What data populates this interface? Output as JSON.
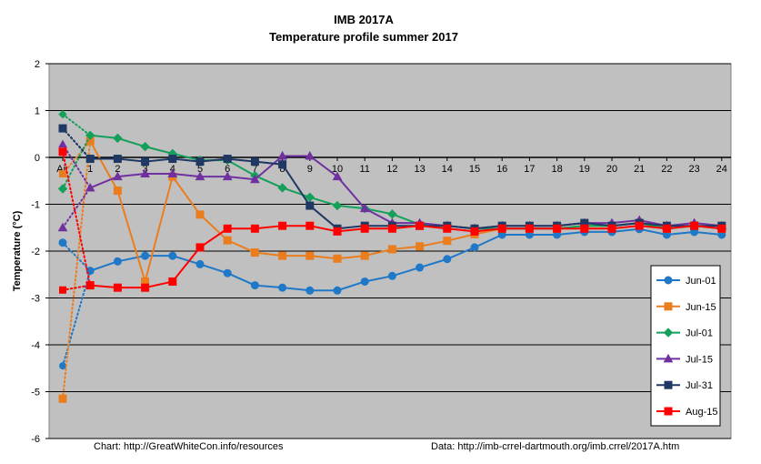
{
  "chart_data": {
    "type": "line",
    "title": "IMB 2017A",
    "subtitle": "Temperature profile summer 2017",
    "ylabel": "Temperature (°C)",
    "xlabel": "",
    "ylim": [
      -6,
      2
    ],
    "yticks": [
      2,
      1,
      0,
      -1,
      -2,
      -3,
      -4,
      -5,
      -6
    ],
    "categories": [
      "Air",
      "1",
      "2",
      "3",
      "4",
      "5",
      "6",
      "7",
      "8",
      "9",
      "10",
      "11",
      "12",
      "13",
      "14",
      "15",
      "16",
      "17",
      "18",
      "19",
      "20",
      "21",
      "22",
      "23",
      "24"
    ],
    "grid": "horizontal",
    "plot_background": "#c0c0c0",
    "legend_position": "right",
    "series": [
      {
        "name": "Jun-01",
        "color": "#1f78c8",
        "marker": "circle",
        "values": [
          -1.82,
          -2.42,
          -2.22,
          -2.1,
          -2.1,
          -2.28,
          -2.47,
          -2.73,
          -2.78,
          -2.84,
          -2.84,
          -2.65,
          -2.53,
          -2.35,
          -2.17,
          -1.92,
          -1.65,
          -1.65,
          -1.65,
          -1.59,
          -1.59,
          -1.53,
          -1.65,
          -1.59,
          -1.65
        ]
      },
      {
        "name": "Jun-15",
        "color": "#ea7d1e",
        "marker": "square",
        "values": [
          -5.15,
          0.35,
          -0.71,
          -2.65,
          -0.41,
          -1.22,
          -1.77,
          -2.03,
          -2.1,
          -2.1,
          -2.16,
          -2.1,
          -1.96,
          -1.9,
          -1.78,
          -1.64,
          -1.52,
          -1.52,
          -1.52,
          -1.46,
          -1.46,
          -1.4,
          -1.52,
          -1.46,
          -1.52
        ]
      },
      {
        "name": "Jul-01",
        "color": "#14a05a",
        "marker": "diamond",
        "values": [
          -0.67,
          0.47,
          0.41,
          0.23,
          0.08,
          -0.06,
          -0.06,
          -0.39,
          -0.65,
          -0.85,
          -1.03,
          -1.09,
          -1.21,
          -1.43,
          -1.46,
          -1.52,
          -1.52,
          -1.52,
          -1.52,
          -1.46,
          -1.46,
          -1.4,
          -1.52,
          -1.46,
          -1.52
        ]
      },
      {
        "name": "Jul-15",
        "color": "#7030a0",
        "marker": "triangle",
        "values": [
          -1.5,
          -0.65,
          -0.41,
          -0.35,
          -0.35,
          -0.41,
          -0.41,
          -0.47,
          0.03,
          0.03,
          -0.41,
          -1.09,
          -1.4,
          -1.4,
          -1.46,
          -1.52,
          -1.46,
          -1.46,
          -1.46,
          -1.4,
          -1.4,
          -1.34,
          -1.46,
          -1.4,
          -1.46
        ]
      },
      {
        "name": "Jul-31",
        "color": "#1f3864",
        "marker": "square",
        "values": [
          0.62,
          -0.03,
          -0.03,
          -0.09,
          -0.03,
          -0.09,
          -0.03,
          -0.09,
          -0.15,
          -1.03,
          -1.52,
          -1.46,
          -1.46,
          -1.46,
          -1.46,
          -1.52,
          -1.46,
          -1.46,
          -1.46,
          -1.4,
          -1.46,
          -1.4,
          -1.46,
          -1.46,
          -1.46
        ]
      },
      {
        "name": "Aug-15",
        "color": "#ff0000",
        "marker": "square",
        "values": [
          0.12,
          -2.73,
          -2.78,
          -2.78,
          -2.65,
          -1.92,
          -1.52,
          -1.52,
          -1.46,
          -1.46,
          -1.58,
          -1.52,
          -1.52,
          -1.46,
          -1.52,
          -1.58,
          -1.52,
          -1.52,
          -1.52,
          -1.52,
          -1.52,
          -1.46,
          -1.52,
          -1.46,
          -1.52
        ]
      }
    ],
    "air_to_1_secondary": {
      "Jun-01": -4.45,
      "Jun-15": -0.35,
      "Jul-01": 0.92,
      "Jul-15": 0.28,
      "Jul-31": 0.62,
      "Aug-15": -2.83
    }
  },
  "footer": {
    "chart_credit": "Chart: http://GreatWhiteCon.info/resources",
    "data_source": "Data:  http://imb-crrel-dartmouth.org/imb.crrel/2017A.htm"
  }
}
